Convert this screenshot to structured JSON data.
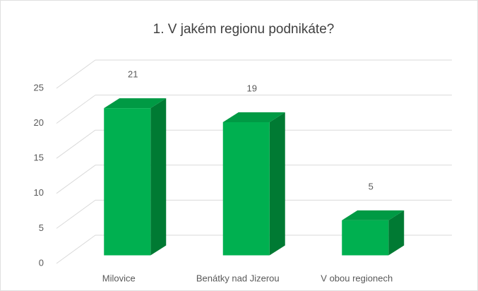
{
  "chart_data": {
    "type": "bar3d",
    "title": "1. V jakém regionu podnikáte?",
    "categories": [
      "Milovice",
      "Benátky nad Jizerou",
      "V obou regionech"
    ],
    "values": [
      21,
      19,
      5
    ],
    "color": "#00b050",
    "ylim": [
      0,
      25
    ],
    "yticks": [
      0,
      5,
      10,
      15,
      20,
      25
    ],
    "grid": true
  }
}
